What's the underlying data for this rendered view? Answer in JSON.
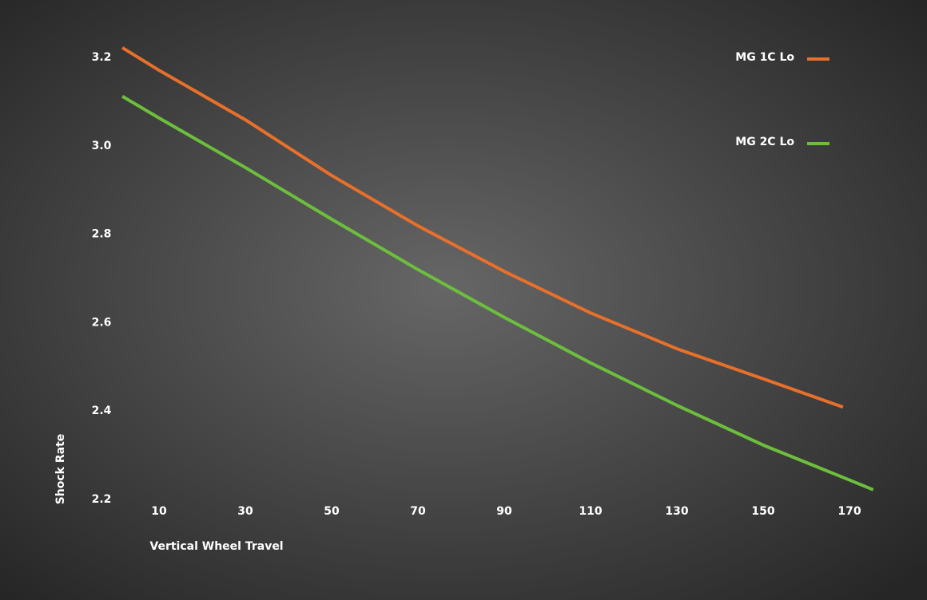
{
  "chart_data": {
    "type": "line",
    "x_label": "Vertical Wheel Travel",
    "y_label": "Shock Rate",
    "x": [
      1.5,
      10,
      30,
      50,
      70,
      90,
      110,
      130,
      150,
      168.5,
      175.5
    ],
    "series": [
      {
        "name": "MG 1C Lo",
        "color": "#e8702a",
        "values": [
          3.222,
          3.171,
          3.059,
          2.933,
          2.819,
          2.716,
          2.622,
          2.541,
          2.473,
          2.409,
          null
        ]
      },
      {
        "name": "MG 2C Lo",
        "color": "#6cbf3c",
        "values": [
          3.112,
          3.063,
          2.951,
          2.834,
          2.72,
          2.612,
          2.509,
          2.413,
          2.323,
          2.25,
          2.222
        ]
      }
    ],
    "xlim": [
      0,
      180
    ],
    "ylim": [
      2.2,
      3.2
    ],
    "xticks": [
      10,
      30,
      50,
      70,
      90,
      110,
      130,
      150,
      170
    ],
    "yticks": [
      2.2,
      2.4,
      2.6,
      2.8,
      {
        "value": 3,
        "label": "3.0"
      },
      3.2
    ],
    "grid": false,
    "legend": "top-right"
  }
}
